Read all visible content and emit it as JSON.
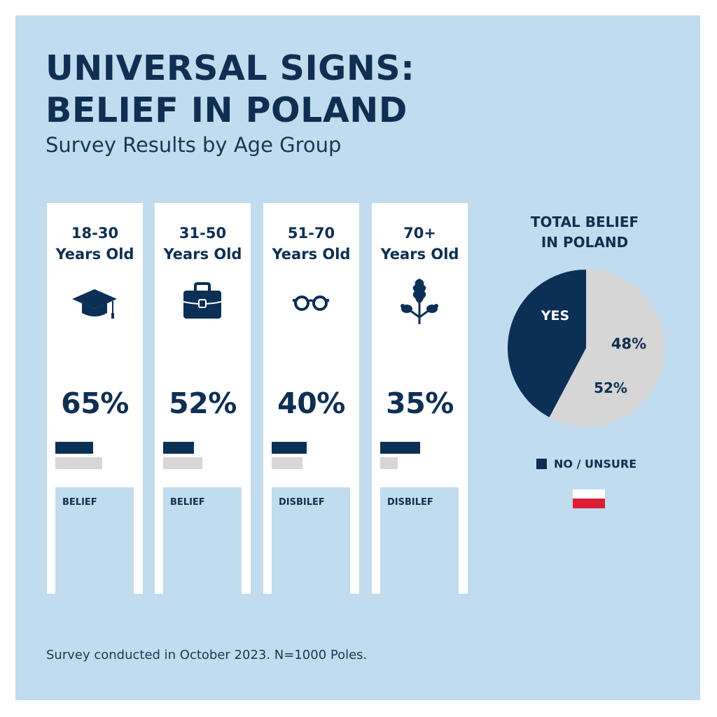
{
  "header": {
    "title_line1": "UNIVERSAL SIGNS:",
    "title_line2": "BELIEF IN POLAND",
    "subtitle": "Survey Results by Age Group"
  },
  "colors": {
    "background": "#c1dcee",
    "navy": "#0c2f55",
    "gray": "#d6d6d6",
    "flag_white": "#ffffff",
    "flag_red": "#dc1e35"
  },
  "cards": [
    {
      "age": "18-30",
      "age_suffix": "Years Old",
      "icon": "graduation-cap-icon",
      "percent_label": "65%",
      "label": "BELIEF",
      "bar_dark": 48,
      "bar_gray": 60
    },
    {
      "age": "31-50",
      "age_suffix": "Years Old",
      "icon": "briefcase-icon",
      "percent_label": "52%",
      "label": "BELIEF",
      "bar_dark": 39,
      "bar_gray": 50
    },
    {
      "age": "51-70",
      "age_suffix": "Years Old",
      "icon": "glasses-icon",
      "percent_label": "40%",
      "label": "DISBILEF",
      "bar_dark": 45,
      "bar_gray": 39
    },
    {
      "age": "70+",
      "age_suffix": "Years Old",
      "icon": "oak-leaf-icon",
      "percent_label": "35%",
      "label": "DISBILEF",
      "bar_dark": 51,
      "bar_gray": 22
    }
  ],
  "pie_section": {
    "title_line1": "TOTAL BELIEF",
    "title_line2": "IN POLAND",
    "legend_label": "NO / UNSURE"
  },
  "footnote": "Survey conducted in October 2023. N=1000 Poles.",
  "chart_data": [
    {
      "type": "bar",
      "title": "Survey Results by Age Group",
      "categories": [
        "18-30 Years Old",
        "31-50 Years Old",
        "51-70 Years Old",
        "70+ Years Old"
      ],
      "series": [
        {
          "name": "Headline percentage",
          "values": [
            65,
            52,
            40,
            35
          ]
        },
        {
          "name": "Dark bar (relative length)",
          "values": [
            48,
            39,
            45,
            51
          ]
        },
        {
          "name": "Gray bar (relative length)",
          "values": [
            60,
            50,
            39,
            22
          ]
        }
      ],
      "category_labels": [
        "BELIEF",
        "BELIEF",
        "DISBILEF",
        "DISBILEF"
      ],
      "xlabel": "",
      "ylabel": ""
    },
    {
      "type": "pie",
      "title": "TOTAL BELIEF IN POLAND",
      "slices": [
        {
          "label": "YES",
          "value": 48,
          "value_label": "48%",
          "color": "#0c2f55"
        },
        {
          "label": "NO / UNSURE",
          "value": 52,
          "value_label": "52%",
          "color": "#d6d6d6"
        }
      ],
      "legend": "below",
      "legend_entries": [
        "NO / UNSURE"
      ]
    }
  ]
}
